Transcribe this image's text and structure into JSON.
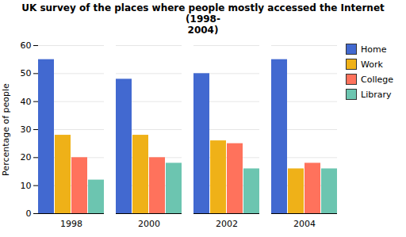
{
  "chart_data": {
    "type": "bar",
    "title": "UK survey of the places where people mostly accessed the Internet (1998-\n2004)",
    "categories": [
      "1998",
      "2000",
      "2002",
      "2004"
    ],
    "series": [
      {
        "name": "Home",
        "values": [
          55,
          48,
          50,
          55
        ]
      },
      {
        "name": "Work",
        "values": [
          28,
          28,
          26,
          16
        ]
      },
      {
        "name": "College",
        "values": [
          20,
          20,
          25,
          18
        ]
      },
      {
        "name": "Library",
        "values": [
          12,
          18,
          16,
          16
        ]
      }
    ],
    "ylabel": "Percentage of people",
    "ylim": [
      0,
      60
    ],
    "yticks": [
      0,
      10,
      20,
      30,
      40,
      50,
      60
    ],
    "grid": true,
    "legend": "upper right"
  }
}
